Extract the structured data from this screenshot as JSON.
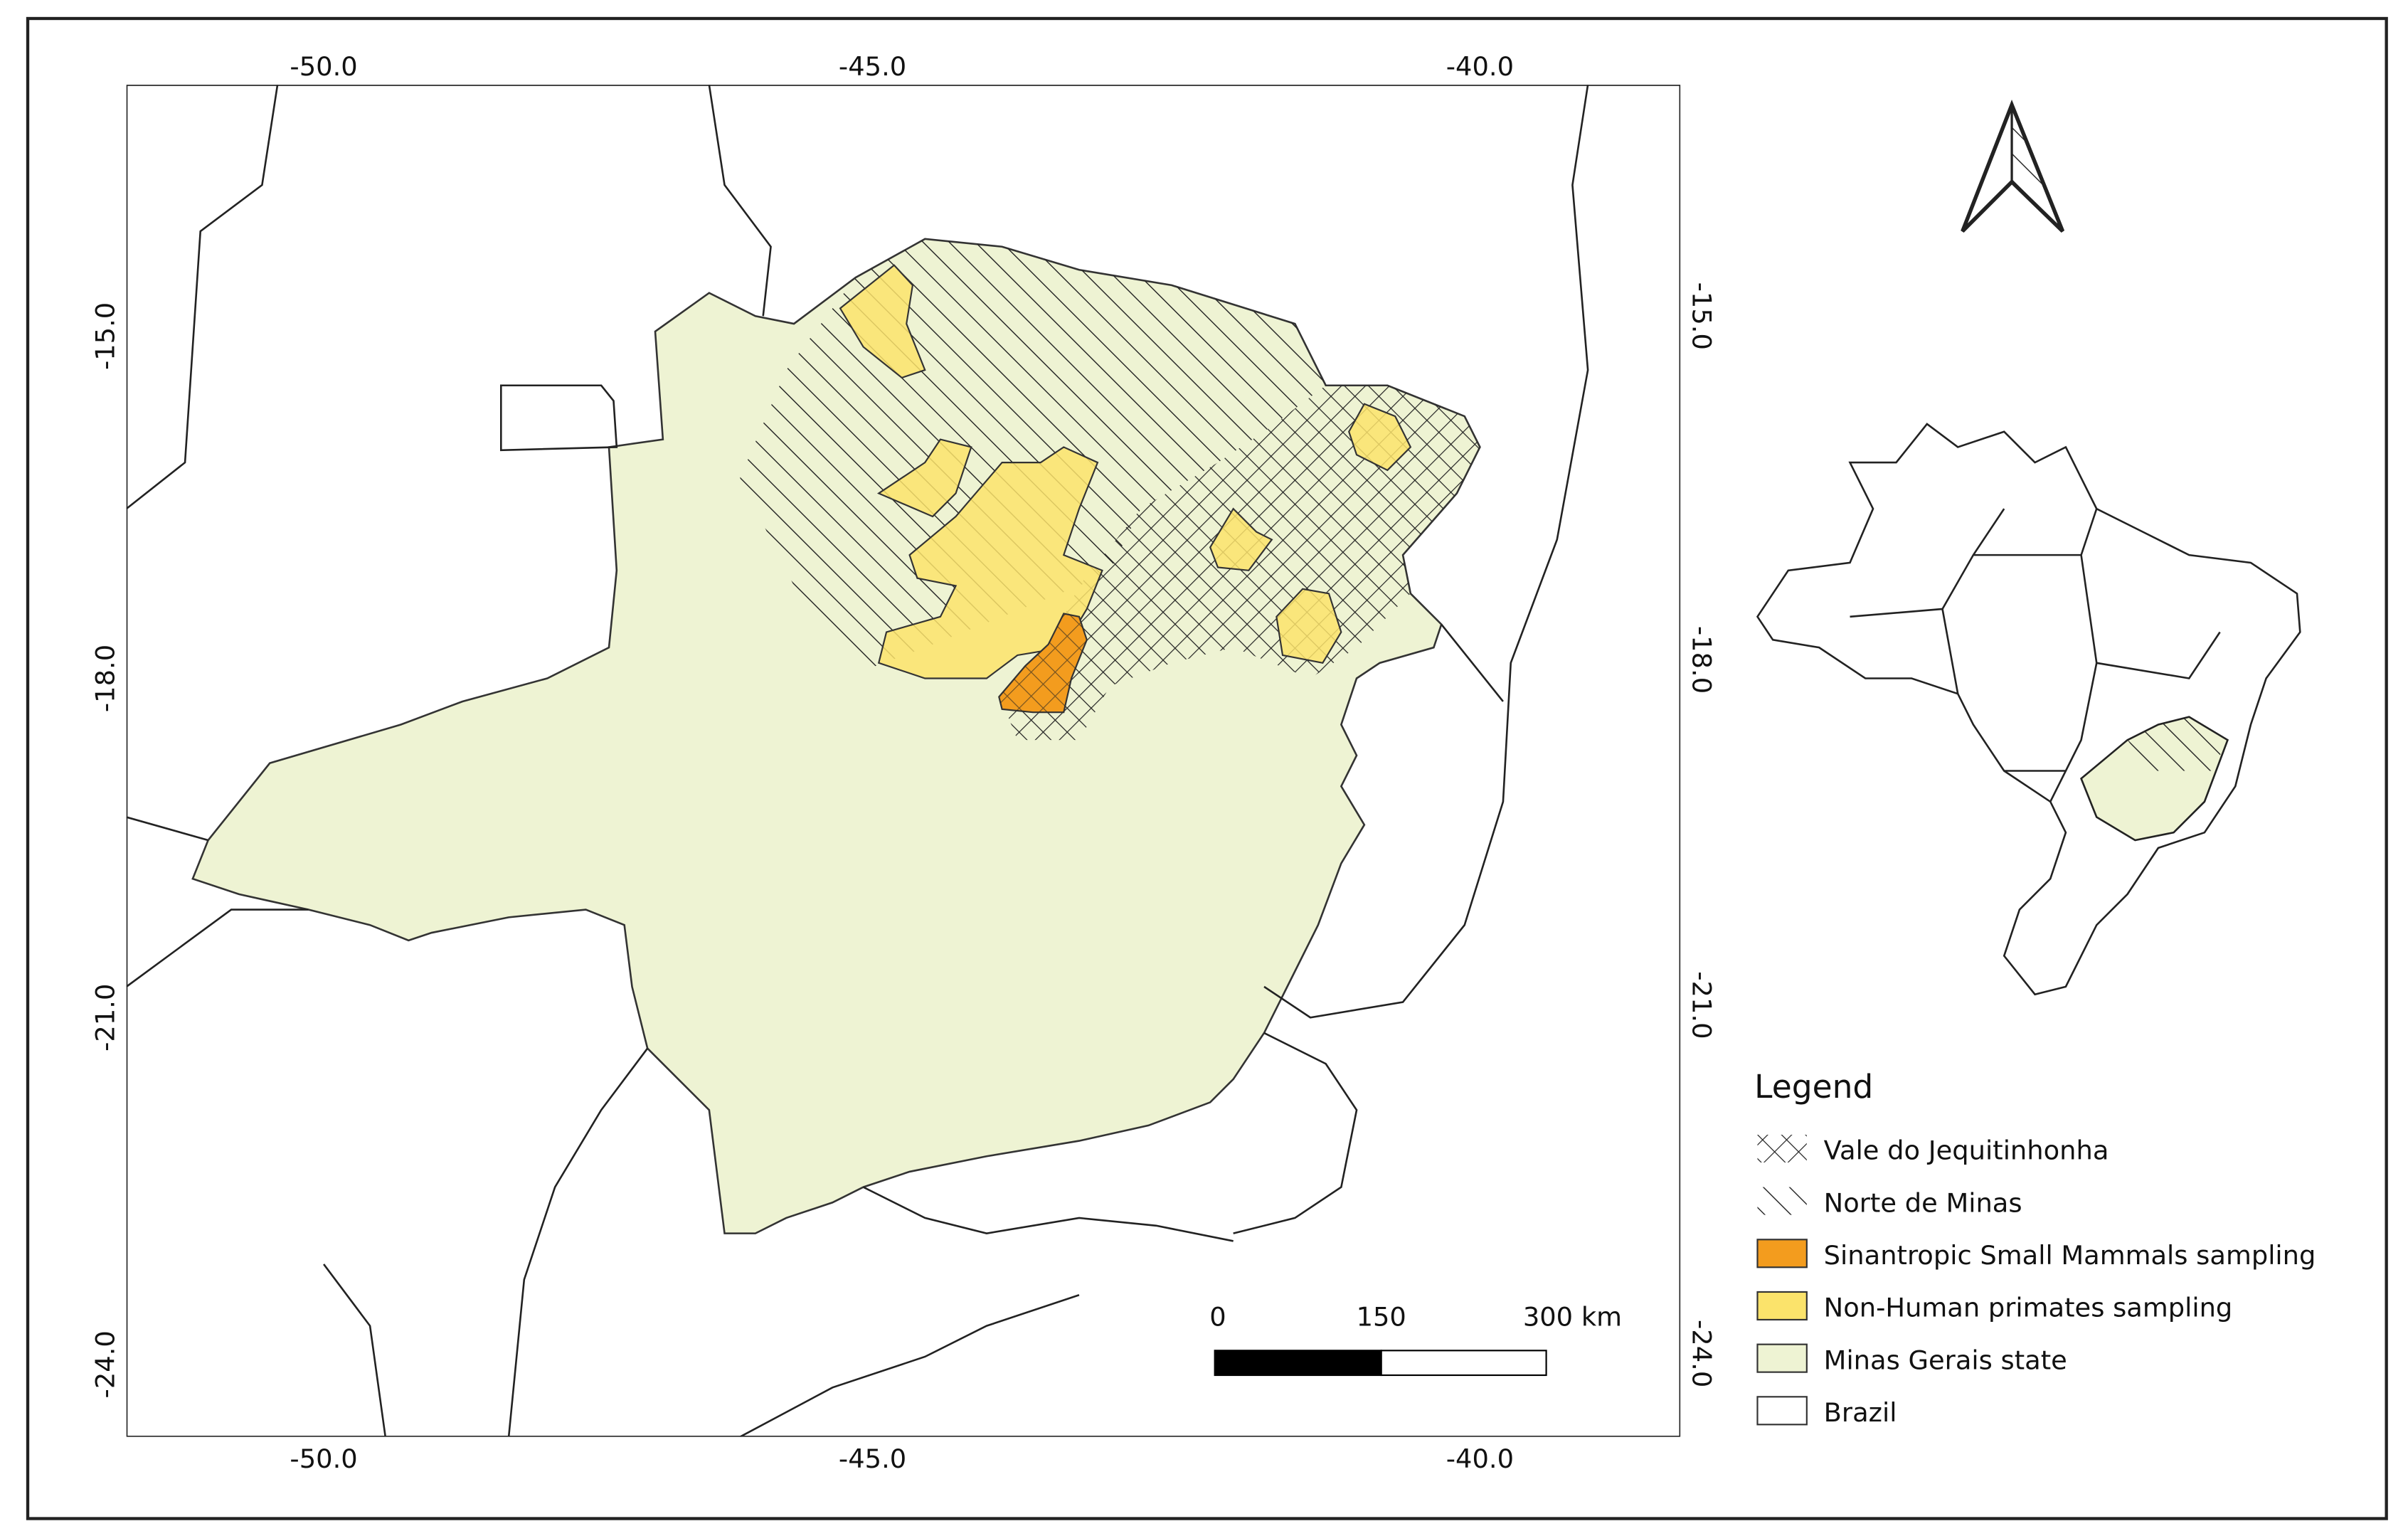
{
  "map": {
    "x_ticks_top": [
      "-50.0",
      "-45.0",
      "-40.0"
    ],
    "x_ticks_bottom": [
      "-50.0",
      "-45.0",
      "-40.0"
    ],
    "y_ticks_left": [
      "-15.0",
      "-18.0",
      "-21.0",
      "-24.0"
    ],
    "y_ticks_right": [
      "-15.0",
      "-18.0",
      "-21.0",
      "-24.0"
    ],
    "legend": {
      "title": "Legend",
      "items": [
        "Vale do Jequitinhonha",
        "Norte de Minas",
        "Sinantropic Small Mammals sampling",
        "Non-Human primates sampling",
        "Minas Gerais state",
        "Brazil"
      ]
    },
    "scale_bar": {
      "labels": [
        "0",
        "150",
        "300 km"
      ]
    }
  }
}
